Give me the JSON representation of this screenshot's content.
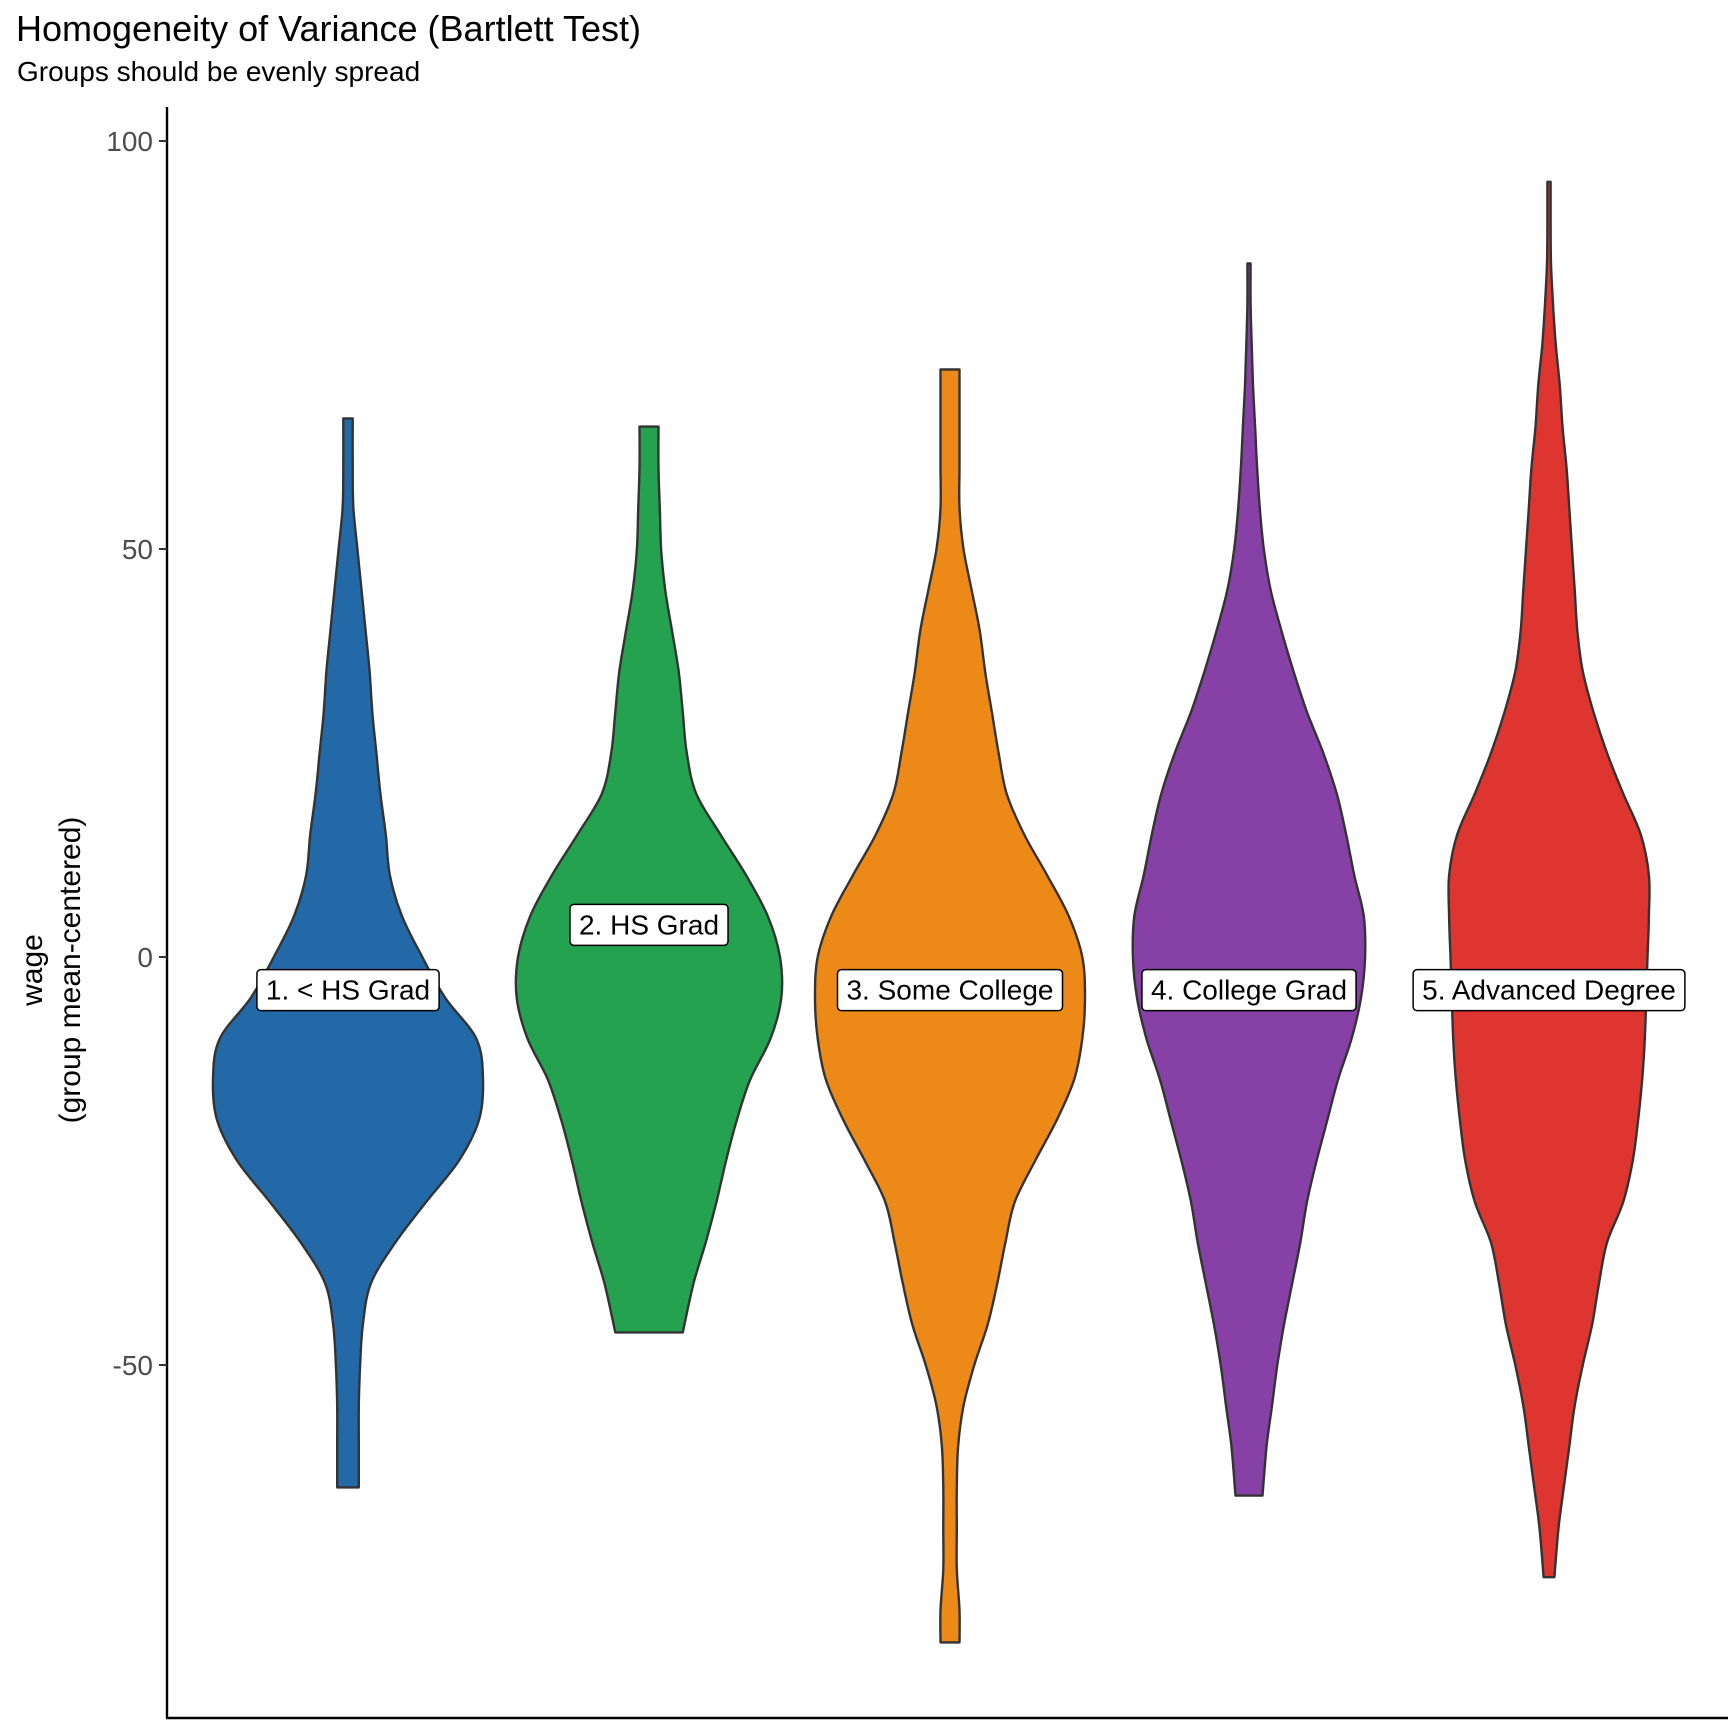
{
  "chart_data": {
    "type": "violin",
    "title": "Homogeneity of Variance (Bartlett Test)",
    "subtitle": "Groups should be evenly spread",
    "xlabel": "",
    "ylabel": "wage\n(group mean-centered)",
    "ylim": [
      -93,
      104
    ],
    "yticks": [
      -50,
      0,
      50,
      100
    ],
    "grid": false,
    "legend": "none",
    "groups": [
      {
        "name": "1. < HS Grad",
        "color": "#2369A8",
        "label_y": -4,
        "min": -65,
        "max": 66,
        "density_y": [
          -65,
          -60,
          -55,
          -50,
          -45,
          -40,
          -35,
          -30,
          -25,
          -20,
          -15,
          -10,
          -5,
          0,
          5,
          10,
          15,
          20,
          25,
          30,
          35,
          40,
          45,
          50,
          55,
          60,
          66
        ],
        "density_w": [
          0.08,
          0.08,
          0.08,
          0.09,
          0.11,
          0.17,
          0.35,
          0.58,
          0.82,
          0.97,
          1.0,
          0.95,
          0.72,
          0.55,
          0.4,
          0.31,
          0.28,
          0.24,
          0.21,
          0.18,
          0.16,
          0.13,
          0.1,
          0.07,
          0.04,
          0.035,
          0.035
        ]
      },
      {
        "name": "2. HS Grad",
        "color": "#24A24F",
        "label_y": 4,
        "min": -46,
        "max": 65,
        "density_y": [
          -46,
          -40,
          -35,
          -30,
          -25,
          -20,
          -15,
          -10,
          -5,
          0,
          5,
          10,
          15,
          20,
          25,
          30,
          35,
          40,
          45,
          50,
          55,
          60,
          65
        ],
        "density_w": [
          0.25,
          0.33,
          0.42,
          0.5,
          0.57,
          0.65,
          0.75,
          0.9,
          0.98,
          0.97,
          0.88,
          0.72,
          0.53,
          0.35,
          0.28,
          0.25,
          0.22,
          0.17,
          0.12,
          0.09,
          0.08,
          0.07,
          0.07
        ]
      },
      {
        "name": "3. Some College",
        "color": "#ED8A17",
        "label_y": -4,
        "min": -84,
        "max": 72,
        "density_y": [
          -84,
          -80,
          -75,
          -70,
          -65,
          -60,
          -55,
          -50,
          -45,
          -40,
          -35,
          -30,
          -25,
          -20,
          -15,
          -10,
          -5,
          0,
          5,
          10,
          15,
          20,
          25,
          30,
          35,
          40,
          45,
          50,
          55,
          60,
          65,
          72
        ],
        "density_w": [
          0.07,
          0.07,
          0.05,
          0.05,
          0.05,
          0.06,
          0.1,
          0.18,
          0.28,
          0.35,
          0.41,
          0.48,
          0.63,
          0.79,
          0.92,
          0.98,
          1.0,
          0.98,
          0.88,
          0.72,
          0.55,
          0.42,
          0.36,
          0.31,
          0.26,
          0.22,
          0.16,
          0.1,
          0.07,
          0.07,
          0.07,
          0.07
        ]
      },
      {
        "name": "4. College Grad",
        "color": "#8640A6",
        "label_y": -4,
        "min": -66,
        "max": 85,
        "density_y": [
          -66,
          -60,
          -55,
          -50,
          -45,
          -40,
          -35,
          -30,
          -25,
          -20,
          -15,
          -10,
          -5,
          0,
          5,
          10,
          15,
          20,
          25,
          30,
          35,
          40,
          45,
          50,
          55,
          60,
          65,
          70,
          75,
          80,
          85
        ],
        "density_w": [
          0.1,
          0.13,
          0.17,
          0.21,
          0.26,
          0.32,
          0.38,
          0.43,
          0.5,
          0.58,
          0.66,
          0.76,
          0.83,
          0.86,
          0.85,
          0.78,
          0.72,
          0.65,
          0.55,
          0.43,
          0.33,
          0.24,
          0.16,
          0.11,
          0.08,
          0.06,
          0.045,
          0.03,
          0.02,
          0.012,
          0.012
        ]
      },
      {
        "name": "5. Advanced Degree",
        "color": "#DE3530",
        "label_y": -4,
        "min": -76,
        "max": 95,
        "density_y": [
          -76,
          -70,
          -65,
          -60,
          -55,
          -50,
          -45,
          -40,
          -35,
          -30,
          -25,
          -20,
          -15,
          -10,
          -5,
          0,
          5,
          10,
          15,
          20,
          25,
          30,
          35,
          40,
          45,
          50,
          55,
          60,
          65,
          70,
          75,
          80,
          85,
          90,
          95
        ],
        "density_w": [
          0.04,
          0.07,
          0.11,
          0.15,
          0.19,
          0.25,
          0.32,
          0.37,
          0.43,
          0.55,
          0.62,
          0.66,
          0.69,
          0.71,
          0.72,
          0.73,
          0.74,
          0.74,
          0.68,
          0.55,
          0.43,
          0.33,
          0.25,
          0.21,
          0.19,
          0.17,
          0.15,
          0.13,
          0.1,
          0.08,
          0.05,
          0.03,
          0.015,
          0.012,
          0.012
        ]
      }
    ]
  }
}
